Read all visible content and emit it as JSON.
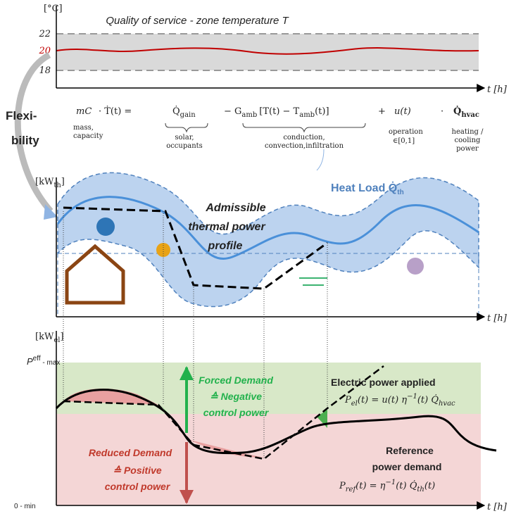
{
  "temperature_panel": {
    "unit": "[°C]",
    "title": "Quality of service - zone temperature T",
    "ticks": [
      "22",
      "20",
      "18"
    ],
    "x_axis": "t [h]"
  },
  "side_label": [
    "Flexi-",
    "bility"
  ],
  "equation": {
    "lhs_term": "mC",
    "lhs_label": [
      "mass,",
      "capacity"
    ],
    "lhs_rest": "· Ṫ(t) =",
    "gain": {
      "symbol": "Q̇",
      "subscript": "gain"
    },
    "gain_label": [
      "solar,",
      "occupants"
    ],
    "loss": {
      "a": "− G",
      "sub": "amb",
      "b": "[T(t) − T",
      "sub2": "amb",
      "c": "(t)]"
    },
    "loss_label": [
      "conduction,",
      "convection,infiltration"
    ],
    "plus": "+",
    "control": "u(t)",
    "control_label": [
      "operation",
      "∈[0,1]"
    ],
    "dot": "·",
    "hvac": {
      "symbol": "Q̇",
      "subscript": "hvac"
    },
    "hvac_label": [
      "heating /",
      "cooling",
      "power"
    ]
  },
  "thermal_panel": {
    "unit": {
      "a": "[kW",
      "sub": "th",
      "b": "]"
    },
    "heat_load": {
      "a": "Heat Load Q̇",
      "sub": "th"
    },
    "profile_label": [
      "Admissible",
      "thermal power",
      "profile"
    ],
    "x_axis": "t [h]"
  },
  "electric_panel": {
    "unit": {
      "a": "[kW",
      "sub": "el",
      "b": "]"
    },
    "max_label": {
      "a": "P",
      "sup": "eff",
      "b": " - max"
    },
    "min_label": "0 - min",
    "x_axis": "t [h]",
    "forced": [
      "Forced Demand",
      "≙ Negative",
      "control power"
    ],
    "reduced": [
      "Reduced Demand",
      "≙ Positive",
      "control power"
    ],
    "applied_title": "Electric power applied",
    "applied_formula": {
      "a": "P",
      "sub": "el",
      "b": "(t) = u(t) η",
      "sup": "−1",
      "c": "(t) Q̇",
      "sub2": "hvac"
    },
    "reference_title": [
      "Reference",
      "power demand"
    ],
    "reference_formula": {
      "a": "P",
      "sub": "ref",
      "b": "(t) = η",
      "sup": "−1",
      "c": "(t) Q̇",
      "sub2": "th",
      "d": "(t)"
    }
  }
}
